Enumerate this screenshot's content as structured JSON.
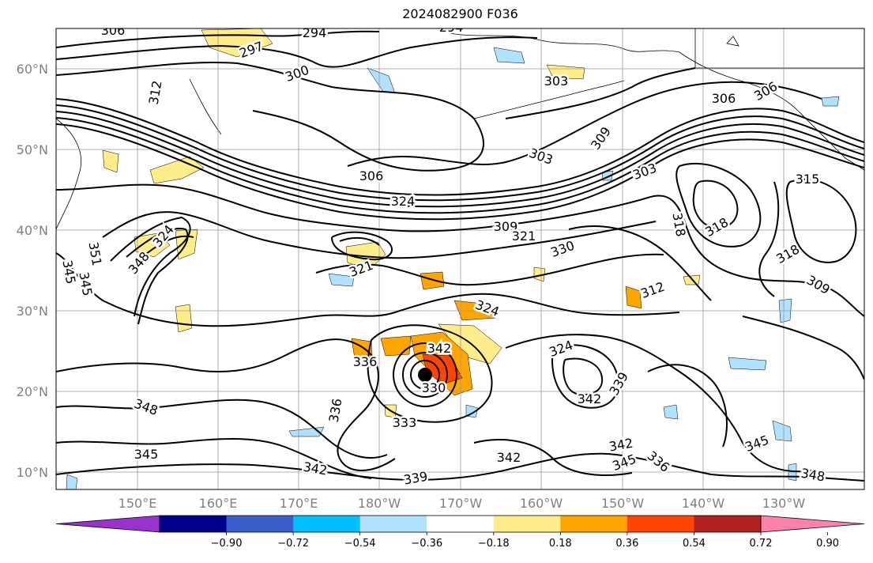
{
  "title": "2024082900 F036",
  "map": {
    "lat_labels": [
      "60°N",
      "50°N",
      "40°N",
      "30°N",
      "20°N",
      "10°N"
    ],
    "lon_labels": [
      "150°E",
      "160°E",
      "170°E",
      "180°W",
      "170°W",
      "160°W",
      "150°W",
      "140°W",
      "130°W"
    ],
    "grid": true,
    "contour_color": "#000000"
  },
  "contour_labels": [
    "306",
    "294",
    "294",
    "297",
    "300",
    "312",
    "303",
    "306",
    "303",
    "309",
    "306",
    "306",
    "303",
    "324",
    "318",
    "315",
    "318",
    "309",
    "321",
    "330",
    "318",
    "309",
    "312",
    "321",
    "324",
    "342",
    "324",
    "330",
    "336",
    "342",
    "333",
    "339",
    "342",
    "339",
    "342",
    "345",
    "348",
    "348",
    "345",
    "345",
    "336",
    "342",
    "345",
    "345",
    "351",
    "348",
    "336",
    "324"
  ],
  "colorbar": {
    "ticks": [
      "−0.90",
      "−0.72",
      "−0.54",
      "−0.36",
      "−0.18",
      "0.18",
      "0.36",
      "0.54",
      "0.72",
      "0.90"
    ],
    "colors": [
      "#9a32cd",
      "#00008b",
      "#3a5fcd",
      "#00bfff",
      "#b0e2ff",
      "#ffffff",
      "#ffec8b",
      "#ffa500",
      "#ff4500",
      "#b22222",
      "#ff82ab"
    ]
  }
}
